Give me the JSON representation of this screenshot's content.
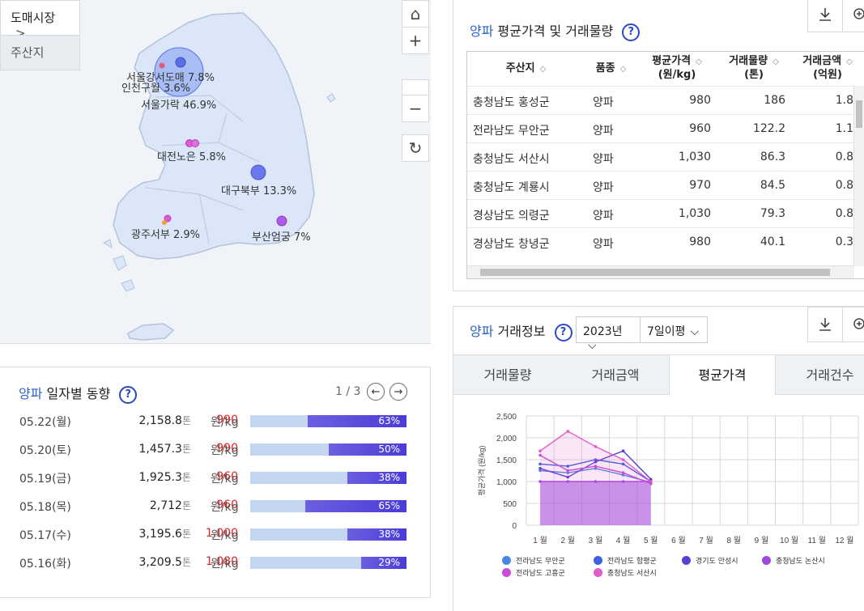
{
  "map": {
    "tabs": [
      "도매시장",
      "주산지"
    ],
    "tab_arrow": ">",
    "controls": {
      "home": "⌂",
      "zoom_in": "+",
      "zoom_out": "−",
      "refresh": "↻"
    },
    "labels": [
      {
        "text": "서울강서도매 7.8%"
      },
      {
        "text": "인천구월 3.6%"
      },
      {
        "text": "서울가락 46.9%"
      },
      {
        "text": "대전노은 5.8%"
      },
      {
        "text": "대구북부 13.3%"
      },
      {
        "text": "광주서부 2.9%"
      },
      {
        "text": "부산엄궁 7%"
      }
    ],
    "colors": {
      "land": "#dce8f8",
      "land_stroke": "#b7c6dc",
      "sea": "#f0f3f7",
      "bubble_blue": "#5b6ee8",
      "bubble_pink": "#e05ad8",
      "bubble_purple": "#b05ae8"
    }
  },
  "daily": {
    "title_accent": "양파",
    "title_rest": " 일자별 동향",
    "help": "?",
    "pager": "1 / 3",
    "prev": "←",
    "next": "→",
    "rows": [
      {
        "date": "05.22(월)",
        "volume": "2,158.8",
        "vol_unit": "톤",
        "price": "990",
        "price_unit": "원/kg",
        "ratio": 63,
        "ratio_label": "63%"
      },
      {
        "date": "05.20(토)",
        "volume": "1,457.3",
        "vol_unit": "톤",
        "price": "990",
        "price_unit": "원/kg",
        "ratio": 50,
        "ratio_label": "50%"
      },
      {
        "date": "05.19(금)",
        "volume": "1,925.3",
        "vol_unit": "톤",
        "price": "960",
        "price_unit": "원/kg",
        "ratio": 38,
        "ratio_label": "38%"
      },
      {
        "date": "05.18(목)",
        "volume": "2,712",
        "vol_unit": "톤",
        "price": "960",
        "price_unit": "원/kg",
        "ratio": 65,
        "ratio_label": "65%"
      },
      {
        "date": "05.17(수)",
        "volume": "3,195.6",
        "vol_unit": "톤",
        "price": "1,000",
        "price_unit": "원/kg",
        "ratio": 38,
        "ratio_label": "38%"
      },
      {
        "date": "05.16(화)",
        "volume": "3,209.5",
        "vol_unit": "톤",
        "price": "1,080",
        "price_unit": "원/kg",
        "ratio": 29,
        "ratio_label": "29%"
      }
    ]
  },
  "table": {
    "title_accent": "양파",
    "title_rest": " 평균가격 및 거래물량",
    "help": "?",
    "headers": [
      {
        "l1": "주산지",
        "l2": ""
      },
      {
        "l1": "품종",
        "l2": ""
      },
      {
        "l1": "평균가격",
        "l2": "(원/kg)"
      },
      {
        "l1": "거래물량",
        "l2": "(톤)"
      },
      {
        "l1": "거래금액",
        "l2": "(억원)"
      }
    ],
    "rows": [
      [
        "충청남도 홍성군",
        "양파",
        "980",
        "186",
        "1.8"
      ],
      [
        "전라남도 무안군",
        "양파",
        "960",
        "122.2",
        "1.1"
      ],
      [
        "충청남도 서산시",
        "양파",
        "1,030",
        "86.3",
        "0.8"
      ],
      [
        "충청남도 계룡시",
        "양파",
        "970",
        "84.5",
        "0.8"
      ],
      [
        "경상남도 의령군",
        "양파",
        "1,030",
        "79.3",
        "0.8"
      ],
      [
        "경상남도 창녕군",
        "양파",
        "980",
        "40.1",
        "0.3"
      ]
    ]
  },
  "trade": {
    "title_accent": "양파",
    "title_rest": " 거래정보",
    "help": "?",
    "year": "2023년",
    "period": "7일이평",
    "tabs": [
      "거래물량",
      "거래금액",
      "평균가격",
      "거래건수"
    ],
    "active_tab": 2
  },
  "chart_data": {
    "type": "line",
    "ylabel": "평균가격 (원/kg)",
    "categories": [
      "1 월",
      "2 월",
      "3 월",
      "4 월",
      "5 월",
      "6 월",
      "7 월",
      "8 월",
      "9 월",
      "10 월",
      "11 월",
      "12 월"
    ],
    "yticks": [
      "2,500",
      "2,000",
      "1,500",
      "1,000",
      "500",
      "0"
    ],
    "ylim": [
      0,
      2500
    ],
    "grid": true,
    "legend_position": "bottom",
    "series": [
      {
        "name": "전라남도 무안군",
        "color": "#4a86e8",
        "values": [
          1250,
          1200,
          1300,
          1150,
          980,
          null,
          null,
          null,
          null,
          null,
          null,
          null
        ]
      },
      {
        "name": "전라남도 함평군",
        "color": "#3f5fe0",
        "values": [
          1400,
          1350,
          1500,
          1400,
          1000,
          null,
          null,
          null,
          null,
          null,
          null,
          null
        ]
      },
      {
        "name": "경기도 안성시",
        "color": "#5a3fd6",
        "values": [
          1300,
          1100,
          1450,
          1700,
          1050,
          null,
          null,
          null,
          null,
          null,
          null,
          null
        ]
      },
      {
        "name": "충청남도 논산시",
        "color": "#9b4ae0",
        "values": [
          1000,
          1000,
          1000,
          1000,
          1000,
          null,
          null,
          null,
          null,
          null,
          null,
          null
        ]
      },
      {
        "name": "전라남도 고흥군",
        "color": "#c84ad8",
        "values": [
          1600,
          1250,
          1350,
          1200,
          950,
          null,
          null,
          null,
          null,
          null,
          null,
          null
        ]
      },
      {
        "name": "충청남도 서산시",
        "color": "#e05ac8",
        "values": [
          1700,
          2150,
          1800,
          1500,
          1000,
          null,
          null,
          null,
          null,
          null,
          null,
          null
        ]
      }
    ]
  }
}
